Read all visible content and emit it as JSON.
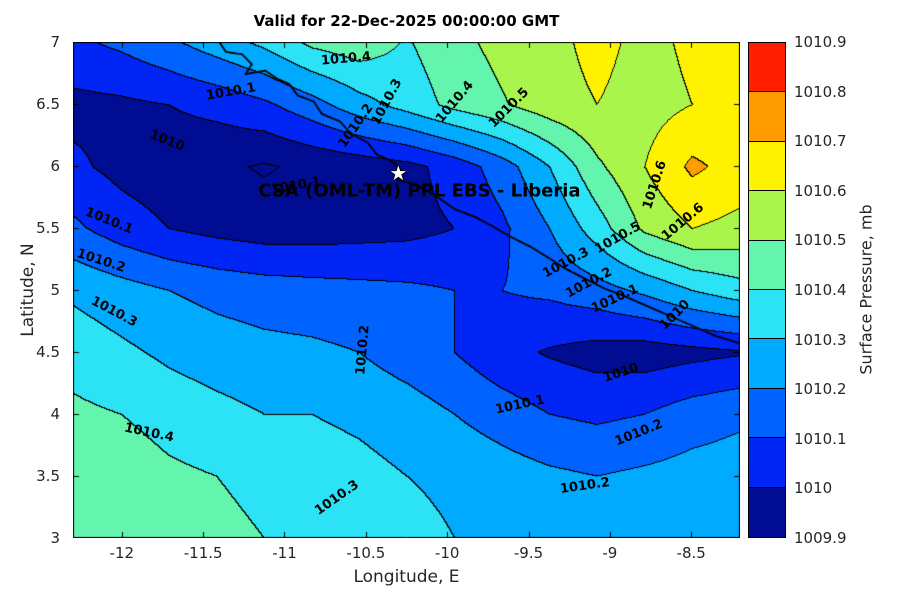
{
  "chart_data": {
    "type": "filled_contour",
    "title": "Valid for 22-Dec-2025 00:00:00 GMT",
    "xlabel": "Longitude, E",
    "ylabel": "Latitude, N",
    "colorbar_label": "Surface Pressure, mb",
    "xlim": [
      -12.3,
      -8.2
    ],
    "ylim": [
      3,
      7
    ],
    "x_ticks": [
      -12,
      -11.5,
      -11,
      -10.5,
      -10,
      -9.5,
      -9,
      -8.5
    ],
    "x_tick_labels": [
      "-12",
      "-11.5",
      "-11",
      "-10.5",
      "-10",
      "-9.5",
      "-9",
      "-8.5"
    ],
    "y_ticks": [
      3,
      3.5,
      4,
      4.5,
      5,
      5.5,
      6,
      6.5,
      7
    ],
    "y_tick_labels": [
      "3",
      "3.5",
      "4",
      "4.5",
      "5",
      "5.5",
      "6",
      "6.5",
      "7"
    ],
    "levels": [
      1009.9,
      1010.0,
      1010.1,
      1010.2,
      1010.3,
      1010.4,
      1010.5,
      1010.6,
      1010.7,
      1010.8,
      1010.9
    ],
    "colorbar_tick_labels": [
      "1009.9",
      "1010",
      "1010.1",
      "1010.2",
      "1010.3",
      "1010.4",
      "1010.5",
      "1010.6",
      "1010.7",
      "1010.8",
      "1010.9"
    ],
    "band_colors": [
      "#000d92",
      "#0025f5",
      "#0063ff",
      "#00aaff",
      "#2ce2f5",
      "#63f5ad",
      "#aaf54b",
      "#fff200",
      "#ff9d00",
      "#ff1e00"
    ],
    "grid_lats": [
      7.0,
      6.5,
      6.0,
      5.5,
      5.0,
      4.5,
      4.0,
      3.5,
      3.0
    ],
    "grid_lons": [
      -12.3,
      -12.007,
      -11.714,
      -11.421,
      -11.129,
      -10.836,
      -10.543,
      -10.25,
      -9.957,
      -9.664,
      -9.371,
      -9.079,
      -8.786,
      -8.493,
      -8.2
    ],
    "pressure_mb": [
      [
        1010.08,
        1010.12,
        1010.18,
        1010.25,
        1010.32,
        1010.42,
        1010.46,
        1010.39,
        1010.47,
        1010.53,
        1010.57,
        1010.63,
        1010.57,
        1010.62,
        1010.66
      ],
      [
        1009.97,
        1009.98,
        1010.0,
        1010.03,
        1010.08,
        1010.16,
        1010.26,
        1010.34,
        1010.43,
        1010.49,
        1010.56,
        1010.6,
        1010.56,
        1010.6,
        1010.63
      ],
      [
        1010.02,
        1009.97,
        1009.94,
        1009.92,
        1009.89,
        1009.92,
        1009.94,
        1009.97,
        1010.04,
        1010.15,
        1010.3,
        1010.48,
        1010.6,
        1010.72,
        1010.66
      ],
      [
        1010.12,
        1010.05,
        1010.0,
        1009.97,
        1009.95,
        1009.95,
        1009.96,
        1009.97,
        1010.0,
        1010.08,
        1010.2,
        1010.35,
        1010.52,
        1010.6,
        1010.57
      ],
      [
        1010.28,
        1010.24,
        1010.2,
        1010.17,
        1010.15,
        1010.14,
        1010.13,
        1010.12,
        1010.1,
        1010.1,
        1010.12,
        1010.16,
        1010.22,
        1010.3,
        1010.36
      ],
      [
        1010.36,
        1010.32,
        1010.28,
        1010.25,
        1010.23,
        1010.22,
        1010.2,
        1010.15,
        1010.1,
        1010.03,
        1009.99,
        1009.96,
        1009.95,
        1009.97,
        1009.99
      ],
      [
        1010.42,
        1010.4,
        1010.36,
        1010.33,
        1010.3,
        1010.3,
        1010.28,
        1010.25,
        1010.2,
        1010.15,
        1010.1,
        1010.08,
        1010.1,
        1010.15,
        1010.18
      ],
      [
        1010.48,
        1010.46,
        1010.42,
        1010.4,
        1010.38,
        1010.35,
        1010.33,
        1010.3,
        1010.28,
        1010.25,
        1010.22,
        1010.2,
        1010.22,
        1010.24,
        1010.25
      ],
      [
        1010.49,
        1010.47,
        1010.45,
        1010.42,
        1010.4,
        1010.38,
        1010.36,
        1010.33,
        1010.3,
        1010.28,
        1010.26,
        1010.24,
        1010.26,
        1010.27,
        1010.28
      ]
    ],
    "contour_labels": [
      {
        "text": "1010.4",
        "lon": -10.62,
        "lat": 6.86,
        "rot": -5
      },
      {
        "text": "1010.1",
        "lon": -11.33,
        "lat": 6.6,
        "rot": -10
      },
      {
        "text": "1010.3",
        "lon": -10.37,
        "lat": 6.52,
        "rot": -62
      },
      {
        "text": "1010.2",
        "lon": -10.56,
        "lat": 6.32,
        "rot": -55
      },
      {
        "text": "1010.4",
        "lon": -9.95,
        "lat": 6.52,
        "rot": -50
      },
      {
        "text": "1010.5",
        "lon": -9.62,
        "lat": 6.47,
        "rot": -45
      },
      {
        "text": "1010",
        "lon": -11.72,
        "lat": 6.2,
        "rot": 22
      },
      {
        "text": "1010.1",
        "lon": -12.08,
        "lat": 5.56,
        "rot": 22
      },
      {
        "text": "1010.2",
        "lon": -12.13,
        "lat": 5.23,
        "rot": 18
      },
      {
        "text": "1010.3",
        "lon": -12.05,
        "lat": 4.82,
        "rot": 28
      },
      {
        "text": "1010.1",
        "lon": -10.93,
        "lat": 5.84,
        "rot": -10
      },
      {
        "text": "1010.6",
        "lon": -8.72,
        "lat": 5.85,
        "rot": -72
      },
      {
        "text": "1010.5",
        "lon": -8.95,
        "lat": 5.42,
        "rot": -30
      },
      {
        "text": "1010.6",
        "lon": -8.55,
        "lat": 5.55,
        "rot": -40
      },
      {
        "text": "1010.3",
        "lon": -9.27,
        "lat": 5.22,
        "rot": -28
      },
      {
        "text": "1010.2",
        "lon": -9.13,
        "lat": 5.06,
        "rot": -28
      },
      {
        "text": "1010.1",
        "lon": -8.97,
        "lat": 4.93,
        "rot": -25
      },
      {
        "text": "1010",
        "lon": -8.6,
        "lat": 4.8,
        "rot": -45
      },
      {
        "text": "1010.2",
        "lon": -10.52,
        "lat": 4.52,
        "rot": -85
      },
      {
        "text": "1010.1",
        "lon": -9.55,
        "lat": 4.07,
        "rot": -12
      },
      {
        "text": "1010",
        "lon": -8.93,
        "lat": 4.33,
        "rot": -18
      },
      {
        "text": "1010.2",
        "lon": -8.82,
        "lat": 3.85,
        "rot": -22
      },
      {
        "text": "1010.4",
        "lon": -11.83,
        "lat": 3.85,
        "rot": 12
      },
      {
        "text": "1010.3",
        "lon": -10.68,
        "lat": 3.32,
        "rot": -35
      },
      {
        "text": "1010.2",
        "lon": -9.15,
        "lat": 3.42,
        "rot": -8
      }
    ],
    "coastline": [
      [
        -11.4,
        7.0
      ],
      [
        -11.36,
        6.92
      ],
      [
        -11.26,
        6.9
      ],
      [
        -11.2,
        6.82
      ],
      [
        -11.24,
        6.74
      ],
      [
        -11.12,
        6.77
      ],
      [
        -11.04,
        6.7
      ],
      [
        -10.97,
        6.66
      ],
      [
        -10.92,
        6.57
      ],
      [
        -10.82,
        6.52
      ],
      [
        -10.77,
        6.42
      ],
      [
        -10.66,
        6.36
      ],
      [
        -10.59,
        6.26
      ],
      [
        -10.49,
        6.19
      ],
      [
        -10.43,
        6.09
      ],
      [
        -10.34,
        6.04
      ],
      [
        -10.28,
        5.96
      ],
      [
        -10.31,
        5.89
      ],
      [
        -10.19,
        5.85
      ],
      [
        -10.06,
        5.75
      ],
      [
        -9.95,
        5.65
      ],
      [
        -9.83,
        5.59
      ],
      [
        -9.73,
        5.52
      ],
      [
        -9.61,
        5.43
      ],
      [
        -9.49,
        5.35
      ],
      [
        -9.39,
        5.27
      ],
      [
        -9.27,
        5.17
      ],
      [
        -9.15,
        5.09
      ],
      [
        -9.03,
        5.01
      ],
      [
        -8.91,
        4.95
      ],
      [
        -8.77,
        4.87
      ],
      [
        -8.63,
        4.79
      ],
      [
        -8.49,
        4.71
      ],
      [
        -8.35,
        4.63
      ],
      [
        -8.2,
        4.57
      ]
    ],
    "station": {
      "label": "CSA (OML-TM) PPL EBS - Liberia",
      "lon": -10.17,
      "lat": 5.8,
      "marker_glyph": "★",
      "marker_lon": -10.3,
      "marker_lat": 5.94
    }
  }
}
